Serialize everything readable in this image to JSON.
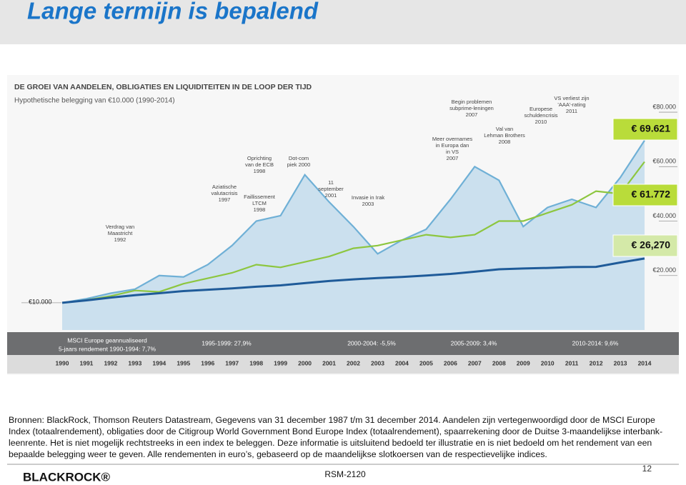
{
  "slide_title": "Lange termijn is bepalend",
  "chart_data": {
    "type": "line",
    "title": "DE GROEI VAN AANDELEN, OBLIGATIES EN LIQUIDITEITEN IN DE LOOP DER TIJD",
    "subtitle": "Hypothetische belegging van €10.000 (1990-2014)",
    "categories": [
      "1990",
      "1991",
      "1992",
      "1993",
      "1994",
      "1995",
      "1996",
      "1997",
      "1998",
      "1999",
      "2000",
      "2001",
      "2002",
      "2003",
      "2004",
      "2005",
      "2006",
      "2007",
      "2008",
      "2009",
      "2010",
      "2011",
      "2012",
      "2013",
      "2014"
    ],
    "series": [
      {
        "color": "#6fb0d6",
        "fill": "#c3dcec",
        "values": [
          10000,
          11500,
          13500,
          15000,
          20000,
          19500,
          24000,
          31000,
          40000,
          42000,
          57000,
          47000,
          38000,
          28000,
          33000,
          37000,
          48000,
          60000,
          55000,
          38000,
          45000,
          48000,
          45000,
          56000,
          69621
        ],
        "value_labels": [
          null,
          null,
          null,
          null,
          null,
          null,
          null,
          null,
          null,
          null,
          null,
          null,
          null,
          null,
          null,
          null,
          null,
          null,
          null,
          null,
          null,
          null,
          null,
          null,
          "€ 69.621"
        ]
      },
      {
        "color": "#8dc63f",
        "values": [
          10000,
          11000,
          12500,
          14500,
          14000,
          17000,
          19000,
          21000,
          24000,
          23000,
          25000,
          27000,
          30000,
          31000,
          33000,
          35000,
          34000,
          35000,
          40000,
          40000,
          43000,
          46000,
          51000,
          50000,
          61772
        ],
        "value_labels": [
          null,
          null,
          null,
          null,
          null,
          null,
          null,
          null,
          null,
          null,
          null,
          null,
          null,
          null,
          null,
          null,
          null,
          null,
          null,
          null,
          null,
          null,
          null,
          null,
          "€ 61.772"
        ]
      },
      {
        "color": "#1f5b99",
        "values": [
          10000,
          10900,
          11900,
          12800,
          13500,
          14300,
          14800,
          15300,
          15900,
          16400,
          17200,
          18000,
          18600,
          19100,
          19500,
          20000,
          20600,
          21400,
          22300,
          22600,
          22800,
          23100,
          23200,
          24800,
          26270
        ],
        "value_labels": [
          null,
          null,
          null,
          null,
          null,
          null,
          null,
          null,
          null,
          null,
          null,
          null,
          null,
          null,
          null,
          null,
          null,
          null,
          null,
          null,
          null,
          null,
          null,
          null,
          "€ 26,270"
        ]
      }
    ],
    "ylim": [
      0,
      85000
    ],
    "yticks": [
      {
        "value": 20000,
        "label": "€20.000"
      },
      {
        "value": 40000,
        "label": "€40.000"
      },
      {
        "value": 60000,
        "label": "€60.000"
      },
      {
        "value": 80000,
        "label": "€80.000"
      }
    ],
    "start_label": {
      "value": 10000,
      "label": "€10.000"
    },
    "annotations": [
      [
        "Verdrag van",
        "Maastricht",
        "1992"
      ],
      [
        "Aziatische",
        "valutacrisis",
        "1997"
      ],
      [
        "Oprichting",
        "van de ECB",
        "1998"
      ],
      [
        "Faillissement",
        "LTCM",
        "1998"
      ],
      [
        "Dot-com",
        "piek 2000"
      ],
      [
        "11",
        "september",
        "2001"
      ],
      [
        "Invasie in Irak",
        "2003"
      ],
      [
        "Meer overnames",
        "in Europa dan",
        "in VS",
        "2007"
      ],
      [
        "Begin problemen",
        "subprime-leningen",
        "2007"
      ],
      [
        "Val van",
        "Lehman Brothers",
        "2008"
      ],
      [
        "Europese",
        "schuldencrisis",
        "2010"
      ],
      [
        "VS verliest zijn",
        "'AAA'-rating",
        "2011"
      ]
    ],
    "period_intro": [
      "MSCI Europe geannualiseerd",
      "5-jaars rendement 1990-1994: 7,7%"
    ],
    "period_labels": [
      "1995-1999: 27,9%",
      "2000-2004: -5,5%",
      "2005-2009: 3,4%",
      "2010-2014: 9,6%"
    ]
  },
  "source": "Bronnen: BlackRock, Thomson Reuters Datastream, Gegevens van 31 december 1987 t/m 31 december 2014. Aandelen zijn vertegenwoordigd door de MSCI Europe Index (totaalrendement), obligaties door de Citigroup World Government Bond Europe Index (totaalrendement), spaarrekening door de Duitse 3-maandelijkse interbank-leenrente. Het is niet mogelijk rechtstreeks in een index te beleggen. Deze informatie is uitsluitend bedoeld ter illustratie en is niet bedoeld om het rendement van een bepaalde belegging weer te geven. Alle rendementen in euro’s, gebaseerd op de maandelijkse slotkoersen van de respectievelijke indices.",
  "footer": {
    "brand": "BLACKROCK®",
    "code": "RSM-2120",
    "page": "12"
  }
}
